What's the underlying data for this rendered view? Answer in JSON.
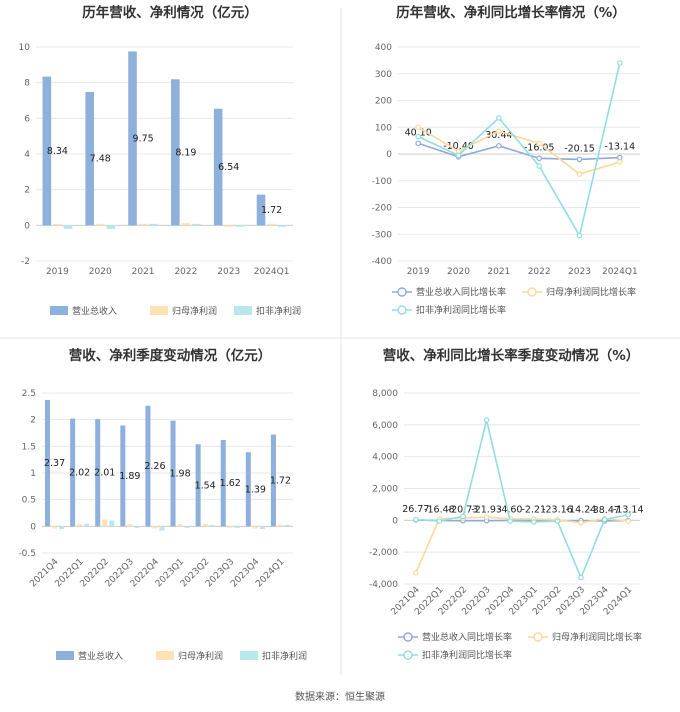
{
  "source": "数据来源：恒生聚源",
  "colors": {
    "revenue": "#8eb0dd",
    "net_profit": "#fde2b4",
    "deducted_profit": "#b9e8ea",
    "revenue_line": "#8eaadb",
    "net_line": "#fbd89e",
    "deducted_line": "#92dde0",
    "grid": "#e8e8e8",
    "divider": "#e6e6e6"
  },
  "chart_data": [
    {
      "type": "bar",
      "title": "历年营收、净利情况（亿元）",
      "categories": [
        "2019",
        "2020",
        "2021",
        "2022",
        "2023",
        "2024Q1"
      ],
      "ylim": [
        -2,
        10
      ],
      "yticks": [
        "-2",
        "0",
        "2",
        "4",
        "6",
        "8",
        "10"
      ],
      "series": [
        {
          "name": "营业总收入",
          "values": [
            8.34,
            7.48,
            9.75,
            8.19,
            6.54,
            1.72
          ],
          "labels": [
            "8.34",
            "7.48",
            "9.75",
            "8.19",
            "6.54",
            "1.72"
          ]
        },
        {
          "name": "归母净利润",
          "values": [
            0.05,
            0.06,
            0.08,
            0.12,
            -0.05,
            0.02
          ]
        },
        {
          "name": "扣非净利润",
          "values": [
            -0.2,
            -0.2,
            0.08,
            0.04,
            -0.08,
            -0.02
          ]
        }
      ],
      "grid": true,
      "legend_position": "bottom"
    },
    {
      "type": "line",
      "title": "历年营收、净利同比增长率情况（%）",
      "categories": [
        "2019",
        "2020",
        "2021",
        "2022",
        "2023",
        "2024Q1"
      ],
      "ylim": [
        -400,
        400
      ],
      "yticks": [
        "-400",
        "-300",
        "-200",
        "-100",
        "0",
        "100",
        "200",
        "300",
        "400"
      ],
      "series": [
        {
          "name": "营业总收入同比增长率",
          "values": [
            40.1,
            -10.4,
            30.44,
            -16.05,
            -20.15,
            -13.14
          ],
          "labels": [
            "40.10",
            "-10.40",
            "30.44",
            "-16.05",
            "-20.15",
            "-13.14"
          ]
        },
        {
          "name": "归母净利润同比增长率",
          "values": [
            100,
            10,
            85,
            40,
            -75,
            -30
          ]
        },
        {
          "name": "扣非净利润同比增长率",
          "values": [
            65,
            -5,
            135,
            -45,
            -305,
            340
          ]
        }
      ],
      "grid": true,
      "legend_position": "bottom"
    },
    {
      "type": "bar",
      "title": "营收、净利季度变动情况（亿元）",
      "categories": [
        "2021Q4",
        "2022Q1",
        "2022Q2",
        "2022Q3",
        "2022Q4",
        "2023Q1",
        "2023Q2",
        "2023Q3",
        "2023Q4",
        "2024Q1"
      ],
      "ylim": [
        -0.5,
        2.5
      ],
      "yticks": [
        "-0.5",
        "0",
        "0.5",
        "1",
        "1.5",
        "2",
        "2.5"
      ],
      "series": [
        {
          "name": "营业总收入",
          "values": [
            2.37,
            2.02,
            2.01,
            1.89,
            2.26,
            1.98,
            1.54,
            1.62,
            1.39,
            1.72
          ],
          "labels": [
            "2.37",
            "2.02",
            "2.01",
            "1.89",
            "2.26",
            "1.98",
            "1.54",
            "1.62",
            "1.39",
            "1.72"
          ]
        },
        {
          "name": "归母净利润",
          "values": [
            -0.04,
            0.04,
            0.13,
            0.04,
            -0.04,
            0.04,
            0.04,
            -0.01,
            -0.04,
            0.03
          ]
        },
        {
          "name": "扣非净利润",
          "values": [
            -0.05,
            0.05,
            0.11,
            -0.01,
            -0.08,
            -0.01,
            0.02,
            -0.02,
            -0.05,
            0.02
          ]
        }
      ],
      "grid": true,
      "legend_position": "bottom"
    },
    {
      "type": "line",
      "title": "营收、净利同比增长率季度变动情况（%）",
      "categories": [
        "2021Q4",
        "2022Q1",
        "2022Q2",
        "2022Q3",
        "2022Q4",
        "2023Q1",
        "2023Q2",
        "2023Q3",
        "2023Q4",
        "2024Q1"
      ],
      "ylim": [
        -4000,
        8000
      ],
      "yticks": [
        "-4,000",
        "-2,000",
        "0",
        "2,000",
        "4,000",
        "6,000",
        "8,000"
      ],
      "series": [
        {
          "name": "营业总收入同比增长率",
          "values": [
            26.77,
            -16.48,
            -20.73,
            -21.93,
            -4.6,
            -2.21,
            -23.16,
            -14.24,
            -38.47,
            -13.14
          ],
          "labels": [
            "26.77",
            "-16.48",
            "-20.73",
            "-21.93",
            "-4.60",
            "-2.21",
            "-23.16",
            "-14.24",
            "-38.47",
            "-13.14"
          ]
        },
        {
          "name": "归母净利润同比增长率",
          "values": [
            -3300,
            100,
            150,
            200,
            100,
            80,
            30,
            -150,
            100,
            -50
          ]
        },
        {
          "name": "扣非净利润同比增长率",
          "values": [
            50,
            -50,
            250,
            6300,
            -50,
            -100,
            -50,
            -3600,
            50,
            350
          ]
        }
      ],
      "grid": true,
      "legend_position": "bottom"
    }
  ]
}
